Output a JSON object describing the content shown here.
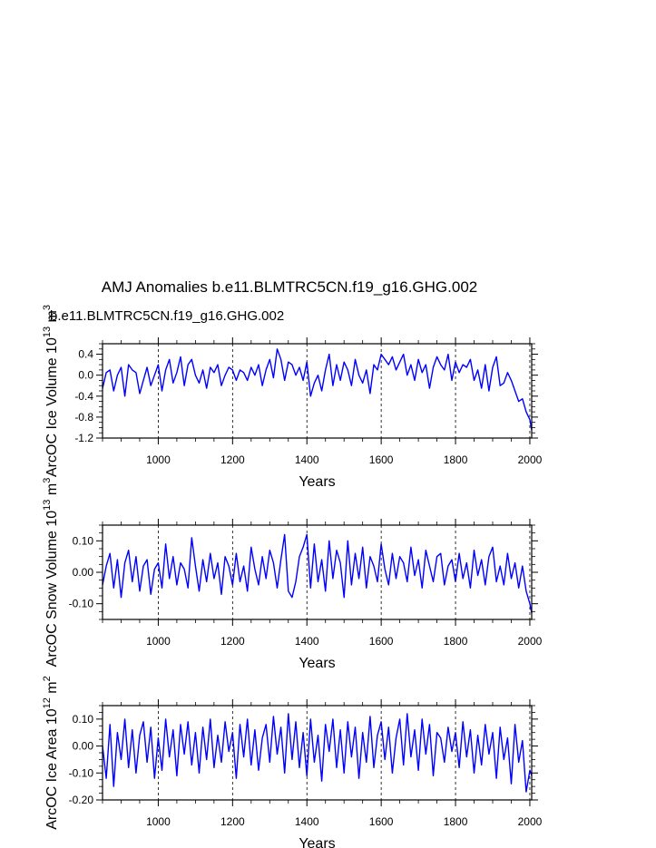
{
  "figure": {
    "title": "AMJ Anomalies b.e11.BLMTRC5CN.f19_g16.GHG.002",
    "subtitle": "b.e11.BLMTRC5CN.f19_g16.GHG.002",
    "subtitle_color": "#0000ff",
    "line_color": "#0000ff"
  },
  "chart_data": [
    {
      "type": "line",
      "name": "ice-volume",
      "ylabel": "ArcOC Ice Volume 10",
      "ylabel_exp": "13",
      "ylabel_unit": " m",
      "ylabel_unit_exp": "3",
      "xlabel": "Years",
      "xlim": [
        850,
        2005
      ],
      "ylim": [
        -1.2,
        0.6
      ],
      "xticks": [
        1000,
        1200,
        1400,
        1600,
        1800,
        2000
      ],
      "xtick_labels": [
        "1000",
        "1200",
        "1400",
        "1600",
        "1800",
        "2000"
      ],
      "yticks": [
        0.4,
        0.0,
        -0.4,
        -0.8,
        -1.2
      ],
      "ytick_labels": [
        "0.4",
        "0.0",
        "-0.4",
        "-0.8",
        "-1.2"
      ],
      "grid": "dashed vertical lines at major x ticks",
      "series": [
        {
          "name": "ArcOC Ice Volume",
          "x": [
            850,
            860,
            870,
            880,
            890,
            900,
            910,
            920,
            930,
            940,
            950,
            960,
            970,
            980,
            990,
            1000,
            1010,
            1020,
            1030,
            1040,
            1050,
            1060,
            1070,
            1080,
            1090,
            1100,
            1110,
            1120,
            1130,
            1140,
            1150,
            1160,
            1170,
            1180,
            1190,
            1200,
            1210,
            1220,
            1230,
            1240,
            1250,
            1260,
            1270,
            1280,
            1290,
            1300,
            1310,
            1320,
            1330,
            1340,
            1350,
            1360,
            1370,
            1380,
            1390,
            1400,
            1410,
            1420,
            1430,
            1440,
            1450,
            1460,
            1470,
            1480,
            1490,
            1500,
            1510,
            1520,
            1530,
            1540,
            1550,
            1560,
            1570,
            1580,
            1590,
            1600,
            1610,
            1620,
            1630,
            1640,
            1650,
            1660,
            1670,
            1680,
            1690,
            1700,
            1710,
            1720,
            1730,
            1740,
            1750,
            1760,
            1770,
            1780,
            1790,
            1800,
            1810,
            1820,
            1830,
            1840,
            1850,
            1860,
            1870,
            1880,
            1890,
            1900,
            1910,
            1920,
            1930,
            1940,
            1950,
            1960,
            1970,
            1980,
            1990,
            2000,
            2005
          ],
          "y": [
            -0.25,
            0.05,
            0.1,
            -0.3,
            0.0,
            0.15,
            -0.4,
            0.2,
            0.1,
            0.05,
            -0.35,
            -0.1,
            0.15,
            -0.2,
            0.0,
            0.2,
            -0.3,
            0.1,
            0.3,
            -0.15,
            0.05,
            0.35,
            -0.2,
            0.2,
            0.3,
            0.0,
            -0.15,
            0.1,
            -0.25,
            0.15,
            0.05,
            0.2,
            -0.2,
            0.0,
            0.15,
            0.1,
            -0.1,
            0.1,
            0.05,
            -0.1,
            0.15,
            0.0,
            0.2,
            -0.2,
            0.1,
            0.3,
            -0.05,
            0.5,
            0.3,
            -0.1,
            0.25,
            0.2,
            0.0,
            0.15,
            -0.1,
            0.25,
            -0.4,
            -0.15,
            0.0,
            -0.3,
            0.1,
            0.4,
            -0.2,
            0.2,
            -0.1,
            0.25,
            0.1,
            -0.2,
            0.3,
            0.0,
            -0.15,
            0.1,
            -0.35,
            0.2,
            0.1,
            0.4,
            0.3,
            0.2,
            0.35,
            0.1,
            0.25,
            0.4,
            0.0,
            0.2,
            -0.1,
            0.3,
            0.05,
            0.2,
            -0.25,
            0.15,
            0.35,
            0.2,
            0.1,
            0.4,
            -0.1,
            0.25,
            0.05,
            0.2,
            0.15,
            0.3,
            -0.1,
            0.1,
            -0.25,
            0.2,
            -0.3,
            0.15,
            0.35,
            -0.2,
            -0.15,
            0.05,
            -0.1,
            -0.3,
            -0.5,
            -0.45,
            -0.7,
            -0.85,
            -1.05
          ]
        }
      ]
    },
    {
      "type": "line",
      "name": "snow-volume",
      "ylabel": "ArcOC Snow Volume 10",
      "ylabel_exp": "13",
      "ylabel_unit": " m",
      "ylabel_unit_exp": "3",
      "xlabel": "Years",
      "xlim": [
        850,
        2005
      ],
      "ylim": [
        -0.15,
        0.15
      ],
      "xticks": [
        1000,
        1200,
        1400,
        1600,
        1800,
        2000
      ],
      "xtick_labels": [
        "1000",
        "1200",
        "1400",
        "1600",
        "1800",
        "2000"
      ],
      "yticks": [
        0.1,
        0.0,
        -0.1
      ],
      "ytick_labels": [
        "0.10",
        "0.00",
        "-0.10"
      ],
      "grid": "dashed vertical lines at major x ticks",
      "series": [
        {
          "name": "ArcOC Snow Volume",
          "x": [
            850,
            860,
            870,
            880,
            890,
            900,
            910,
            920,
            930,
            940,
            950,
            960,
            970,
            980,
            990,
            1000,
            1010,
            1020,
            1030,
            1040,
            1050,
            1060,
            1070,
            1080,
            1090,
            1100,
            1110,
            1120,
            1130,
            1140,
            1150,
            1160,
            1170,
            1180,
            1190,
            1200,
            1210,
            1220,
            1230,
            1240,
            1250,
            1260,
            1270,
            1280,
            1290,
            1300,
            1310,
            1320,
            1330,
            1340,
            1350,
            1360,
            1370,
            1380,
            1390,
            1400,
            1410,
            1420,
            1430,
            1440,
            1450,
            1460,
            1470,
            1480,
            1490,
            1500,
            1510,
            1520,
            1530,
            1540,
            1550,
            1560,
            1570,
            1580,
            1590,
            1600,
            1610,
            1620,
            1630,
            1640,
            1650,
            1660,
            1670,
            1680,
            1690,
            1700,
            1710,
            1720,
            1730,
            1740,
            1750,
            1760,
            1770,
            1780,
            1790,
            1800,
            1810,
            1820,
            1830,
            1840,
            1850,
            1860,
            1870,
            1880,
            1890,
            1900,
            1910,
            1920,
            1930,
            1940,
            1950,
            1960,
            1970,
            1980,
            1990,
            2000,
            2005
          ],
          "y": [
            -0.04,
            0.02,
            0.06,
            -0.05,
            0.04,
            -0.08,
            0.03,
            0.07,
            -0.03,
            0.05,
            -0.06,
            0.02,
            0.04,
            -0.07,
            0.01,
            0.03,
            -0.05,
            0.09,
            -0.02,
            0.05,
            -0.04,
            0.03,
            0.01,
            -0.05,
            0.11,
            0.02,
            -0.06,
            0.04,
            -0.03,
            0.06,
            -0.02,
            0.03,
            -0.07,
            0.05,
            0.02,
            -0.04,
            0.06,
            -0.03,
            0.02,
            -0.06,
            0.08,
            0.01,
            -0.04,
            0.05,
            -0.02,
            0.07,
            0.03,
            -0.05,
            0.04,
            0.12,
            -0.06,
            -0.08,
            -0.03,
            0.05,
            0.08,
            0.12,
            -0.05,
            0.09,
            -0.03,
            0.04,
            -0.06,
            0.1,
            -0.02,
            0.07,
            0.03,
            -0.08,
            0.1,
            -0.04,
            0.06,
            -0.02,
            0.08,
            -0.05,
            0.05,
            0.02,
            -0.03,
            0.09,
            0.01,
            -0.04,
            0.06,
            -0.02,
            0.05,
            0.03,
            -0.03,
            0.08,
            -0.01,
            0.04,
            -0.05,
            0.07,
            0.02,
            -0.03,
            0.05,
            0.06,
            -0.04,
            0.02,
            0.04,
            -0.03,
            0.06,
            -0.02,
            0.03,
            -0.05,
            0.07,
            -0.01,
            0.04,
            -0.04,
            0.05,
            0.08,
            -0.03,
            0.02,
            -0.04,
            0.06,
            -0.02,
            0.03,
            -0.05,
            0.02,
            -0.06,
            -0.1,
            -0.13
          ]
        }
      ]
    },
    {
      "type": "line",
      "name": "ice-area",
      "ylabel": "ArcOC Ice Area 10",
      "ylabel_exp": "12",
      "ylabel_unit": " m",
      "ylabel_unit_exp": "2",
      "xlabel": "Years",
      "xlim": [
        850,
        2005
      ],
      "ylim": [
        -0.2,
        0.15
      ],
      "xticks": [
        1000,
        1200,
        1400,
        1600,
        1800,
        2000
      ],
      "xtick_labels": [
        "1000",
        "1200",
        "1400",
        "1600",
        "1800",
        "2000"
      ],
      "yticks": [
        0.1,
        0.0,
        -0.1,
        -0.2
      ],
      "ytick_labels": [
        "0.10",
        "0.00",
        "-0.10",
        "-0.20"
      ],
      "grid": "dashed vertical lines at major x ticks",
      "series": [
        {
          "name": "ArcOC Ice Area",
          "x": [
            850,
            860,
            870,
            880,
            890,
            900,
            910,
            920,
            930,
            940,
            950,
            960,
            970,
            980,
            990,
            1000,
            1010,
            1020,
            1030,
            1040,
            1050,
            1060,
            1070,
            1080,
            1090,
            1100,
            1110,
            1120,
            1130,
            1140,
            1150,
            1160,
            1170,
            1180,
            1190,
            1200,
            1210,
            1220,
            1230,
            1240,
            1250,
            1260,
            1270,
            1280,
            1290,
            1300,
            1310,
            1320,
            1330,
            1340,
            1350,
            1360,
            1370,
            1380,
            1390,
            1400,
            1410,
            1420,
            1430,
            1440,
            1450,
            1460,
            1470,
            1480,
            1490,
            1500,
            1510,
            1520,
            1530,
            1540,
            1550,
            1560,
            1570,
            1580,
            1590,
            1600,
            1610,
            1620,
            1630,
            1640,
            1650,
            1660,
            1670,
            1680,
            1690,
            1700,
            1710,
            1720,
            1730,
            1740,
            1750,
            1760,
            1770,
            1780,
            1790,
            1800,
            1810,
            1820,
            1830,
            1840,
            1850,
            1860,
            1870,
            1880,
            1890,
            1900,
            1910,
            1920,
            1930,
            1940,
            1950,
            1960,
            1970,
            1980,
            1990,
            2000,
            2005
          ],
          "y": [
            0.0,
            -0.12,
            0.08,
            -0.15,
            0.05,
            -0.05,
            0.1,
            -0.08,
            0.06,
            -0.1,
            0.04,
            0.09,
            -0.06,
            0.07,
            -0.12,
            0.03,
            -0.09,
            0.1,
            -0.04,
            0.06,
            -0.11,
            0.08,
            -0.03,
            0.09,
            -0.07,
            0.05,
            -0.1,
            0.07,
            -0.05,
            0.1,
            -0.08,
            0.04,
            -0.06,
            0.09,
            -0.02,
            0.05,
            -0.12,
            0.08,
            -0.04,
            0.1,
            -0.07,
            0.06,
            -0.09,
            0.03,
            0.08,
            -0.06,
            0.11,
            -0.03,
            0.07,
            -0.1,
            0.12,
            -0.05,
            0.09,
            -0.08,
            0.05,
            -0.11,
            0.1,
            -0.06,
            0.04,
            -0.13,
            0.08,
            -0.02,
            0.1,
            -0.08,
            0.06,
            -0.1,
            0.09,
            -0.04,
            0.07,
            -0.12,
            0.05,
            -0.06,
            0.11,
            -0.08,
            0.04,
            0.09,
            -0.05,
            0.07,
            -0.1,
            0.03,
            0.1,
            -0.07,
            0.12,
            -0.04,
            0.06,
            -0.09,
            0.1,
            -0.03,
            0.08,
            -0.11,
            0.05,
            0.03,
            -0.06,
            0.07,
            -0.02,
            0.05,
            -0.08,
            0.09,
            -0.04,
            0.06,
            -0.1,
            0.04,
            -0.07,
            0.08,
            -0.03,
            0.05,
            -0.12,
            0.07,
            -0.05,
            0.03,
            -0.14,
            0.08,
            -0.06,
            0.02,
            -0.17,
            -0.09,
            -0.11
          ]
        }
      ]
    }
  ]
}
